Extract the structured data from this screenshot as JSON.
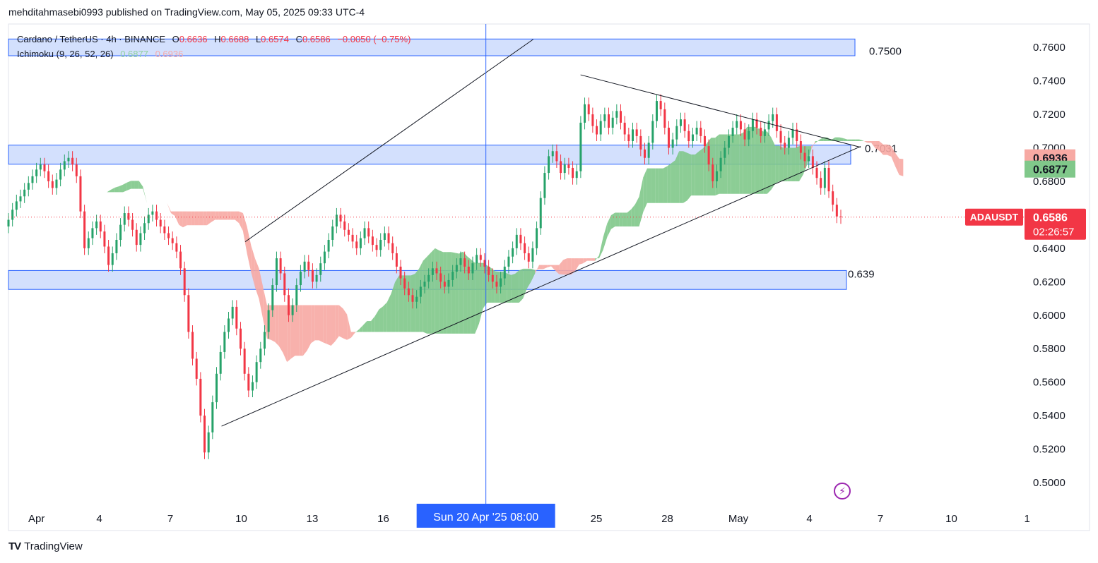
{
  "header": {
    "published_line": "mehditahmasebi0993 published on TradingView.com, May 05, 2025 09:33 UTC-4"
  },
  "legend": {
    "symbol_line": "Cardano / TetherUS · 4h · BINANCE",
    "open_label": "O",
    "open": "0.6636",
    "high_label": "H",
    "high": "0.6688",
    "low_label": "L",
    "low": "0.6574",
    "close_label": "C",
    "close": "0.6586",
    "change": "−0.0050 (−0.75%)",
    "indicator": "Ichimoku (9, 26, 52, 26)",
    "ichimoku_a": "0.6877",
    "ichimoku_b": "0.6936"
  },
  "footer": {
    "brand": "TradingView",
    "logo_text": "TV",
    "flash_icon": "lightning-icon"
  },
  "colors": {
    "up": "#26a269",
    "down": "#f23645",
    "cloud_bull": "#80c88a",
    "cloud_bear": "#f7a9a3",
    "zone": "#d3e0fd",
    "zone_border": "#2962ff",
    "crosshair": "#2962ff",
    "price_tag": "#f23645"
  },
  "chart_data": {
    "type": "candlestick",
    "symbol": "ADAUSDT",
    "timeframe": "4h",
    "ylim": [
      0.48,
      0.77
    ],
    "y_ticks": [
      "0.7600",
      "0.7400",
      "0.7200",
      "0.7000",
      "0.6800",
      "0.6600",
      "0.6400",
      "0.6200",
      "0.6000",
      "0.5800",
      "0.5600",
      "0.5400",
      "0.5200",
      "0.5000"
    ],
    "x_ticks": [
      {
        "label": "Apr",
        "day": 1,
        "month": "Apr"
      },
      {
        "label": "4",
        "day": 4,
        "month": "Apr"
      },
      {
        "label": "7",
        "day": 7,
        "month": "Apr"
      },
      {
        "label": "10",
        "day": 10,
        "month": "Apr"
      },
      {
        "label": "13",
        "day": 13,
        "month": "Apr"
      },
      {
        "label": "16",
        "day": 16,
        "month": "Apr"
      },
      {
        "label": "25",
        "day": 25,
        "month": "Apr"
      },
      {
        "label": "28",
        "day": 28,
        "month": "Apr"
      },
      {
        "label": "May",
        "day": 1,
        "month": "May"
      },
      {
        "label": "4",
        "day": 4,
        "month": "May"
      },
      {
        "label": "7",
        "day": 7,
        "month": "May"
      },
      {
        "label": "10",
        "day": 10,
        "month": "May"
      },
      {
        "label": "1",
        "day": 1,
        "month": "Jun"
      }
    ],
    "crosshair": {
      "label": "Sun 20 Apr '25   08:00",
      "x_date": "2025-04-20 08:00"
    },
    "price_tags": [
      {
        "symbol": "ADAUSDT",
        "value": "0.6586",
        "countdown": "02:26:57"
      },
      {
        "name": "ichimoku_b",
        "value": "0.6936"
      },
      {
        "name": "ichimoku_a",
        "value": "0.6877"
      }
    ],
    "zones": [
      {
        "low": 0.755,
        "high": 0.765,
        "label": "0.7500"
      },
      {
        "low": 0.6902,
        "high": 0.7016,
        "label": "0.7031"
      },
      {
        "low": 0.6154,
        "high": 0.6267,
        "label": "0.639"
      }
    ],
    "trendlines": [
      {
        "from": [
          "2025-04-10 04:00",
          0.6439
        ],
        "to": [
          "2025-04-22 08:00",
          0.7648
        ]
      },
      {
        "from": [
          "2025-04-09 04:00",
          0.5337
        ],
        "to": [
          "2025-05-06 04:00",
          0.7008
        ]
      },
      {
        "from": [
          "2025-04-24 08:00",
          0.7436
        ],
        "to": [
          "2025-05-06 04:00",
          0.7003
        ]
      }
    ],
    "candles_close": [
      0.657,
      0.663,
      0.668,
      0.671,
      0.675,
      0.679,
      0.683,
      0.687,
      0.69,
      0.686,
      0.68,
      0.676,
      0.681,
      0.687,
      0.692,
      0.694,
      0.69,
      0.683,
      0.662,
      0.64,
      0.646,
      0.652,
      0.656,
      0.65,
      0.641,
      0.63,
      0.637,
      0.645,
      0.654,
      0.661,
      0.657,
      0.651,
      0.642,
      0.649,
      0.655,
      0.66,
      0.662,
      0.657,
      0.653,
      0.649,
      0.646,
      0.643,
      0.638,
      0.628,
      0.612,
      0.59,
      0.574,
      0.562,
      0.54,
      0.518,
      0.53,
      0.548,
      0.565,
      0.578,
      0.59,
      0.598,
      0.605,
      0.592,
      0.58,
      0.565,
      0.555,
      0.56,
      0.572,
      0.58,
      0.59,
      0.603,
      0.618,
      0.634,
      0.625,
      0.612,
      0.6,
      0.606,
      0.618,
      0.626,
      0.632,
      0.627,
      0.62,
      0.624,
      0.631,
      0.638,
      0.645,
      0.653,
      0.66,
      0.656,
      0.651,
      0.648,
      0.644,
      0.64,
      0.646,
      0.652,
      0.647,
      0.642,
      0.639,
      0.645,
      0.649,
      0.643,
      0.637,
      0.629,
      0.622,
      0.616,
      0.612,
      0.608,
      0.611,
      0.617,
      0.62,
      0.624,
      0.628,
      0.625,
      0.62,
      0.617,
      0.621,
      0.626,
      0.63,
      0.634,
      0.629,
      0.625,
      0.631,
      0.636,
      0.633,
      0.629,
      0.624,
      0.62,
      0.617,
      0.622,
      0.629,
      0.635,
      0.64,
      0.648,
      0.643,
      0.637,
      0.632,
      0.64,
      0.652,
      0.67,
      0.685,
      0.695,
      0.698,
      0.692,
      0.685,
      0.69,
      0.688,
      0.682,
      0.686,
      0.715,
      0.726,
      0.72,
      0.713,
      0.708,
      0.716,
      0.72,
      0.712,
      0.718,
      0.722,
      0.715,
      0.708,
      0.704,
      0.711,
      0.707,
      0.699,
      0.694,
      0.703,
      0.716,
      0.728,
      0.723,
      0.712,
      0.7,
      0.705,
      0.713,
      0.717,
      0.71,
      0.704,
      0.708,
      0.712,
      0.707,
      0.701,
      0.69,
      0.68,
      0.686,
      0.694,
      0.7,
      0.707,
      0.712,
      0.716,
      0.711,
      0.705,
      0.71,
      0.717,
      0.712,
      0.707,
      0.711,
      0.716,
      0.72,
      0.71,
      0.703,
      0.7,
      0.706,
      0.711,
      0.704,
      0.697,
      0.692,
      0.695,
      0.688,
      0.682,
      0.676,
      0.688,
      0.674,
      0.666,
      0.659,
      0.6586
    ],
    "ichimoku": {
      "span_a_last": "0.6877",
      "span_b_last": "0.6936"
    }
  }
}
